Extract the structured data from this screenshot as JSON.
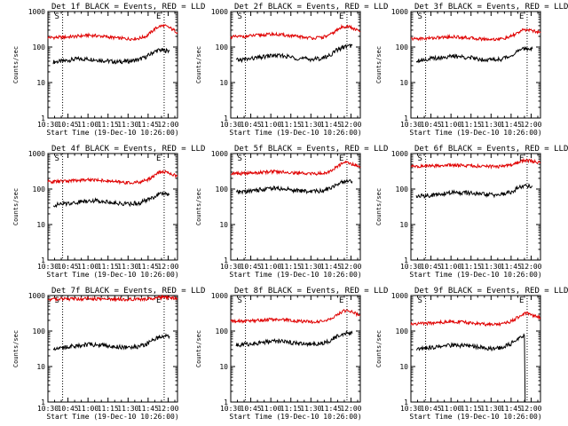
{
  "colors": {
    "events": "#000000",
    "lld": "#e00000",
    "background": "#ffffff",
    "axes": "#000000"
  },
  "shared": {
    "ylabel": "Counts/sec",
    "xlabel": "Start Time (19-Dec-10 10:26:00)",
    "xticks": [
      "10:30",
      "10:45",
      "11:00",
      "11:15",
      "11:30",
      "11:45",
      "12:00"
    ],
    "yticks": [
      "1",
      "10",
      "100",
      "1000"
    ],
    "marker_start": "S",
    "marker_end": "E"
  },
  "chart_data": [
    {
      "type": "line",
      "title": "Det 1f BLACK = Events, RED = LLD",
      "xlabel": "Start Time (19-Dec-10 10:26:00)",
      "ylabel": "Counts/sec",
      "x_unit": "minutes after 10:26",
      "xlim": [
        4,
        101
      ],
      "ylim": [
        1,
        1000
      ],
      "yscale": "log",
      "markers": [
        {
          "label": "S",
          "x": 15
        },
        {
          "label": "E",
          "x": 91
        }
      ],
      "series": [
        {
          "name": "Events",
          "color": "black",
          "x": [
            8,
            15,
            25,
            35,
            45,
            55,
            65,
            72,
            78,
            83,
            87,
            91,
            95
          ],
          "values": [
            38,
            40,
            46,
            46,
            42,
            38,
            40,
            44,
            54,
            72,
            82,
            80,
            78
          ]
        },
        {
          "name": "LLD",
          "color": "red",
          "x": [
            4,
            15,
            25,
            35,
            45,
            55,
            65,
            72,
            78,
            83,
            87,
            91,
            95,
            101
          ],
          "values": [
            185,
            188,
            200,
            215,
            200,
            180,
            170,
            175,
            205,
            300,
            380,
            400,
            350,
            260
          ]
        }
      ]
    },
    {
      "type": "line",
      "title": "Det 2f BLACK = Events, RED = LLD",
      "xlabel": "Start Time (19-Dec-10 10:26:00)",
      "ylabel": "Counts/sec",
      "x_unit": "minutes after 10:26",
      "xlim": [
        4,
        101
      ],
      "ylim": [
        1,
        1000
      ],
      "yscale": "log",
      "markers": [
        {
          "label": "S",
          "x": 15
        },
        {
          "label": "E",
          "x": 91
        }
      ],
      "series": [
        {
          "name": "Events",
          "color": "black",
          "x": [
            8,
            15,
            25,
            35,
            45,
            55,
            65,
            72,
            78,
            83,
            87,
            91,
            95
          ],
          "values": [
            42,
            45,
            50,
            58,
            55,
            48,
            45,
            48,
            58,
            80,
            95,
            105,
            110
          ]
        },
        {
          "name": "LLD",
          "color": "red",
          "x": [
            4,
            15,
            25,
            35,
            45,
            55,
            65,
            72,
            78,
            83,
            87,
            91,
            95,
            101
          ],
          "values": [
            190,
            200,
            215,
            230,
            215,
            195,
            180,
            185,
            215,
            290,
            360,
            390,
            340,
            270
          ]
        }
      ]
    },
    {
      "type": "line",
      "title": "Det 3f BLACK = Events, RED = LLD",
      "xlabel": "Start Time (19-Dec-10 10:26:00)",
      "ylabel": "Counts/sec",
      "x_unit": "minutes after 10:26",
      "xlim": [
        4,
        101
      ],
      "ylim": [
        1,
        1000
      ],
      "yscale": "log",
      "markers": [
        {
          "label": "S",
          "x": 15
        },
        {
          "label": "E",
          "x": 91
        }
      ],
      "series": [
        {
          "name": "Events",
          "color": "black",
          "x": [
            8,
            15,
            25,
            35,
            45,
            55,
            65,
            72,
            78,
            83,
            87,
            91,
            95
          ],
          "values": [
            42,
            45,
            50,
            55,
            52,
            46,
            44,
            46,
            55,
            72,
            85,
            92,
            90
          ]
        },
        {
          "name": "LLD",
          "color": "red",
          "x": [
            4,
            15,
            25,
            35,
            45,
            55,
            65,
            72,
            78,
            83,
            87,
            91,
            95,
            101
          ],
          "values": [
            170,
            175,
            185,
            195,
            185,
            170,
            165,
            170,
            190,
            240,
            290,
            310,
            290,
            250
          ]
        }
      ]
    },
    {
      "type": "line",
      "title": "Det 4f BLACK = Events, RED = LLD",
      "xlabel": "Start Time (19-Dec-10 10:26:00)",
      "ylabel": "Counts/sec",
      "x_unit": "minutes after 10:26",
      "xlim": [
        4,
        101
      ],
      "ylim": [
        1,
        1000
      ],
      "yscale": "log",
      "markers": [
        {
          "label": "S",
          "x": 15
        },
        {
          "label": "E",
          "x": 91
        }
      ],
      "series": [
        {
          "name": "Events",
          "color": "black",
          "x": [
            8,
            15,
            25,
            35,
            45,
            55,
            65,
            72,
            78,
            83,
            87,
            91,
            95
          ],
          "values": [
            35,
            38,
            42,
            48,
            46,
            40,
            38,
            40,
            48,
            60,
            72,
            75,
            72
          ]
        },
        {
          "name": "LLD",
          "color": "red",
          "x": [
            4,
            15,
            25,
            35,
            45,
            55,
            65,
            72,
            78,
            83,
            87,
            91,
            95,
            101
          ],
          "values": [
            160,
            165,
            175,
            185,
            175,
            160,
            150,
            155,
            180,
            230,
            290,
            310,
            280,
            230
          ]
        }
      ]
    },
    {
      "type": "line",
      "title": "Det 5f BLACK = Events, RED = LLD",
      "xlabel": "Start Time (19-Dec-10 10:26:00)",
      "ylabel": "Counts/sec",
      "x_unit": "minutes after 10:26",
      "xlim": [
        4,
        101
      ],
      "ylim": [
        1,
        1000
      ],
      "yscale": "log",
      "markers": [
        {
          "label": "S",
          "x": 15
        },
        {
          "label": "E",
          "x": 91
        }
      ],
      "series": [
        {
          "name": "Events",
          "color": "black",
          "x": [
            8,
            15,
            25,
            35,
            45,
            55,
            65,
            72,
            78,
            83,
            87,
            91,
            95
          ],
          "values": [
            80,
            85,
            95,
            105,
            100,
            90,
            85,
            88,
            105,
            135,
            160,
            170,
            165
          ]
        },
        {
          "name": "LLD",
          "color": "red",
          "x": [
            4,
            15,
            25,
            35,
            45,
            55,
            65,
            72,
            78,
            83,
            87,
            91,
            95,
            101
          ],
          "values": [
            270,
            275,
            290,
            310,
            300,
            280,
            270,
            275,
            310,
            410,
            520,
            560,
            500,
            420
          ]
        }
      ]
    },
    {
      "type": "line",
      "title": "Det 6f BLACK = Events, RED = LLD",
      "xlabel": "Start Time (19-Dec-10 10:26:00)",
      "ylabel": "Counts/sec",
      "x_unit": "minutes after 10:26",
      "xlim": [
        4,
        101
      ],
      "ylim": [
        1,
        1000
      ],
      "yscale": "log",
      "markers": [
        {
          "label": "S",
          "x": 15
        },
        {
          "label": "E",
          "x": 91
        }
      ],
      "series": [
        {
          "name": "Events",
          "color": "black",
          "x": [
            8,
            15,
            25,
            35,
            45,
            55,
            65,
            72,
            78,
            83,
            87,
            91,
            95
          ],
          "values": [
            62,
            65,
            70,
            80,
            78,
            72,
            68,
            70,
            80,
            100,
            118,
            125,
            120
          ]
        },
        {
          "name": "LLD",
          "color": "red",
          "x": [
            4,
            15,
            25,
            35,
            45,
            55,
            65,
            72,
            78,
            83,
            87,
            91,
            95,
            101
          ],
          "values": [
            430,
            440,
            455,
            470,
            460,
            440,
            430,
            435,
            460,
            540,
            620,
            640,
            600,
            540
          ]
        }
      ]
    },
    {
      "type": "line",
      "title": "Det 7f BLACK = Events, RED = LLD",
      "xlabel": "Start Time (19-Dec-10 10:26:00)",
      "ylabel": "Counts/sec",
      "x_unit": "minutes after 10:26",
      "xlim": [
        4,
        101
      ],
      "ylim": [
        1,
        1000
      ],
      "yscale": "log",
      "markers": [
        {
          "label": "S",
          "x": 15
        },
        {
          "label": "E",
          "x": 91
        }
      ],
      "series": [
        {
          "name": "Events",
          "color": "black",
          "x": [
            8,
            15,
            25,
            35,
            45,
            55,
            65,
            72,
            78,
            83,
            87,
            91,
            95
          ],
          "values": [
            33,
            35,
            38,
            42,
            40,
            36,
            34,
            36,
            44,
            56,
            68,
            75,
            72
          ]
        },
        {
          "name": "LLD",
          "color": "red",
          "x": [
            4,
            15,
            25,
            35,
            45,
            55,
            65,
            72,
            78,
            83,
            87,
            91,
            95,
            101
          ],
          "values": [
            780,
            790,
            800,
            810,
            800,
            790,
            780,
            790,
            810,
            840,
            870,
            880,
            860,
            840
          ]
        }
      ]
    },
    {
      "type": "line",
      "title": "Det 8f BLACK = Events, RED = LLD",
      "xlabel": "Start Time (19-Dec-10 10:26:00)",
      "ylabel": "Counts/sec",
      "x_unit": "minutes after 10:26",
      "xlim": [
        4,
        101
      ],
      "ylim": [
        1,
        1000
      ],
      "yscale": "log",
      "markers": [
        {
          "label": "S",
          "x": 15
        },
        {
          "label": "E",
          "x": 91
        }
      ],
      "series": [
        {
          "name": "Events",
          "color": "black",
          "x": [
            8,
            15,
            25,
            35,
            45,
            55,
            65,
            72,
            78,
            83,
            87,
            91,
            95
          ],
          "values": [
            40,
            42,
            46,
            52,
            50,
            44,
            42,
            44,
            52,
            68,
            82,
            90,
            85
          ]
        },
        {
          "name": "LLD",
          "color": "red",
          "x": [
            4,
            15,
            25,
            35,
            45,
            55,
            65,
            72,
            78,
            83,
            87,
            91,
            95,
            101
          ],
          "values": [
            185,
            190,
            200,
            215,
            205,
            190,
            180,
            185,
            210,
            280,
            350,
            380,
            340,
            280
          ]
        }
      ]
    },
    {
      "type": "line",
      "title": "Det 9f BLACK = Events, RED = LLD",
      "xlabel": "Start Time (19-Dec-10 10:26:00)",
      "ylabel": "Counts/sec",
      "x_unit": "minutes after 10:26",
      "xlim": [
        4,
        101
      ],
      "ylim": [
        1,
        1000
      ],
      "yscale": "log",
      "markers": [
        {
          "label": "S",
          "x": 15
        },
        {
          "label": "E",
          "x": 91
        }
      ],
      "series": [
        {
          "name": "Events",
          "color": "black",
          "x": [
            8,
            15,
            25,
            35,
            45,
            55,
            65,
            72,
            78,
            83,
            87,
            89,
            90,
            91
          ],
          "values": [
            32,
            34,
            36,
            40,
            38,
            35,
            32,
            34,
            42,
            55,
            68,
            75,
            1,
            1
          ]
        },
        {
          "name": "LLD",
          "color": "red",
          "x": [
            4,
            15,
            25,
            35,
            45,
            55,
            65,
            72,
            78,
            83,
            87,
            91,
            95,
            101
          ],
          "values": [
            160,
            165,
            175,
            185,
            175,
            160,
            150,
            155,
            180,
            230,
            290,
            320,
            280,
            230
          ]
        }
      ]
    }
  ]
}
